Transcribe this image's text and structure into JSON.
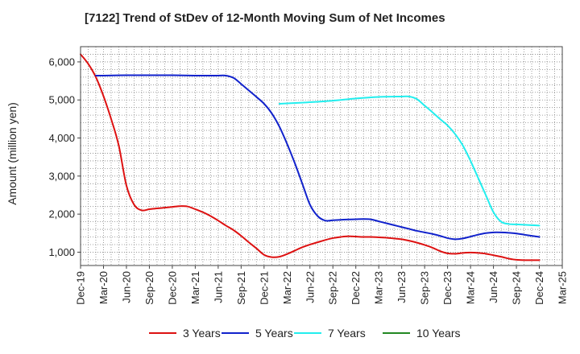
{
  "chart_data": {
    "type": "line",
    "title": "[7122]  Trend of StDev of 12-Month Moving Sum of Net Incomes",
    "ylabel": "Amount (million yen)",
    "xlabel": "",
    "ylim": [
      650,
      6400
    ],
    "y_ticks": [
      1000,
      2000,
      3000,
      4000,
      5000,
      6000
    ],
    "y_tick_labels": [
      "1,000",
      "2,000",
      "3,000",
      "4,000",
      "5,000",
      "6,000"
    ],
    "x_tick_labels": [
      "Dec-19",
      "Mar-20",
      "Jun-20",
      "Sep-20",
      "Dec-20",
      "Mar-21",
      "Jun-21",
      "Sep-21",
      "Dec-21",
      "Mar-22",
      "Jun-22",
      "Sep-22",
      "Dec-22",
      "Mar-23",
      "Jun-23",
      "Sep-23",
      "Dec-23",
      "Mar-24",
      "Jun-24",
      "Sep-24",
      "Dec-24",
      "Mar-25"
    ],
    "grid": true,
    "legend_position": "bottom",
    "series": [
      {
        "name": "3 Years",
        "color": "#dd1111",
        "points": [
          [
            "Dec-19",
            6200
          ],
          [
            "Jan-20",
            5950
          ],
          [
            "Feb-20",
            5600
          ],
          [
            "Mar-20",
            5100
          ],
          [
            "Apr-20",
            4500
          ],
          [
            "May-20",
            3800
          ],
          [
            "Jun-20",
            2750
          ],
          [
            "Jul-20",
            2250
          ],
          [
            "Aug-20",
            2100
          ],
          [
            "Sep-20",
            2130
          ],
          [
            "Oct-20",
            2150
          ],
          [
            "Nov-20",
            2170
          ],
          [
            "Dec-20",
            2190
          ],
          [
            "Jan-21",
            2210
          ],
          [
            "Feb-21",
            2200
          ],
          [
            "Mar-21",
            2130
          ],
          [
            "Apr-21",
            2050
          ],
          [
            "May-21",
            1950
          ],
          [
            "Jun-21",
            1830
          ],
          [
            "Jul-21",
            1700
          ],
          [
            "Aug-21",
            1580
          ],
          [
            "Sep-21",
            1430
          ],
          [
            "Oct-21",
            1260
          ],
          [
            "Nov-21",
            1100
          ],
          [
            "Dec-21",
            930
          ],
          [
            "Jan-22",
            870
          ],
          [
            "Feb-22",
            880
          ],
          [
            "Mar-22",
            950
          ],
          [
            "Apr-22",
            1040
          ],
          [
            "May-22",
            1130
          ],
          [
            "Jun-22",
            1200
          ],
          [
            "Jul-22",
            1260
          ],
          [
            "Aug-22",
            1320
          ],
          [
            "Sep-22",
            1370
          ],
          [
            "Oct-22",
            1400
          ],
          [
            "Nov-22",
            1420
          ],
          [
            "Dec-22",
            1410
          ],
          [
            "Jan-23",
            1400
          ],
          [
            "Feb-23",
            1400
          ],
          [
            "Mar-23",
            1390
          ],
          [
            "Apr-23",
            1380
          ],
          [
            "May-23",
            1360
          ],
          [
            "Jun-23",
            1340
          ],
          [
            "Jul-23",
            1300
          ],
          [
            "Aug-23",
            1250
          ],
          [
            "Sep-23",
            1190
          ],
          [
            "Oct-23",
            1120
          ],
          [
            "Nov-23",
            1030
          ],
          [
            "Dec-23",
            970
          ],
          [
            "Jan-24",
            960
          ],
          [
            "Feb-24",
            980
          ],
          [
            "Mar-24",
            990
          ],
          [
            "Apr-24",
            980
          ],
          [
            "May-24",
            960
          ],
          [
            "Jun-24",
            920
          ],
          [
            "Jul-24",
            880
          ],
          [
            "Aug-24",
            830
          ],
          [
            "Sep-24",
            800
          ],
          [
            "Oct-24",
            790
          ],
          [
            "Nov-24",
            790
          ],
          [
            "Dec-24",
            790
          ]
        ]
      },
      {
        "name": "5 Years",
        "color": "#1122cc",
        "points": [
          [
            "Feb-20",
            5640
          ],
          [
            "Mar-20",
            5640
          ],
          [
            "Jun-20",
            5650
          ],
          [
            "Sep-20",
            5650
          ],
          [
            "Dec-20",
            5650
          ],
          [
            "Mar-21",
            5640
          ],
          [
            "Jun-21",
            5640
          ],
          [
            "Jul-21",
            5640
          ],
          [
            "Aug-21",
            5580
          ],
          [
            "Sep-21",
            5420
          ],
          [
            "Oct-21",
            5250
          ],
          [
            "Nov-21",
            5080
          ],
          [
            "Dec-21",
            4900
          ],
          [
            "Jan-22",
            4650
          ],
          [
            "Feb-22",
            4300
          ],
          [
            "Mar-22",
            3850
          ],
          [
            "Apr-22",
            3350
          ],
          [
            "May-22",
            2800
          ],
          [
            "Jun-22",
            2250
          ],
          [
            "Jul-22",
            1950
          ],
          [
            "Aug-22",
            1830
          ],
          [
            "Sep-22",
            1840
          ],
          [
            "Oct-22",
            1850
          ],
          [
            "Nov-22",
            1860
          ],
          [
            "Dec-22",
            1865
          ],
          [
            "Jan-23",
            1870
          ],
          [
            "Feb-23",
            1860
          ],
          [
            "Mar-23",
            1810
          ],
          [
            "Apr-23",
            1760
          ],
          [
            "May-23",
            1710
          ],
          [
            "Jun-23",
            1660
          ],
          [
            "Jul-23",
            1610
          ],
          [
            "Aug-23",
            1560
          ],
          [
            "Sep-23",
            1520
          ],
          [
            "Oct-23",
            1480
          ],
          [
            "Nov-23",
            1430
          ],
          [
            "Dec-23",
            1370
          ],
          [
            "Jan-24",
            1340
          ],
          [
            "Feb-24",
            1360
          ],
          [
            "Mar-24",
            1410
          ],
          [
            "Apr-24",
            1460
          ],
          [
            "May-24",
            1500
          ],
          [
            "Jun-24",
            1520
          ],
          [
            "Jul-24",
            1520
          ],
          [
            "Aug-24",
            1510
          ],
          [
            "Sep-24",
            1490
          ],
          [
            "Oct-24",
            1460
          ],
          [
            "Nov-24",
            1430
          ],
          [
            "Dec-24",
            1400
          ]
        ]
      },
      {
        "name": "7 Years",
        "color": "#22eeee",
        "points": [
          [
            "Feb-22",
            4900
          ],
          [
            "Mar-22",
            4910
          ],
          [
            "Jun-22",
            4940
          ],
          [
            "Sep-22",
            4980
          ],
          [
            "Dec-22",
            5040
          ],
          [
            "Mar-23",
            5080
          ],
          [
            "Jun-23",
            5090
          ],
          [
            "Jul-23",
            5090
          ],
          [
            "Aug-23",
            5020
          ],
          [
            "Sep-23",
            4850
          ],
          [
            "Oct-23",
            4680
          ],
          [
            "Nov-23",
            4500
          ],
          [
            "Dec-23",
            4330
          ],
          [
            "Jan-24",
            4100
          ],
          [
            "Feb-24",
            3800
          ],
          [
            "Mar-24",
            3400
          ],
          [
            "Apr-24",
            2950
          ],
          [
            "May-24",
            2500
          ],
          [
            "Jun-24",
            2050
          ],
          [
            "Jul-24",
            1800
          ],
          [
            "Aug-24",
            1740
          ],
          [
            "Sep-24",
            1730
          ],
          [
            "Oct-24",
            1720
          ],
          [
            "Nov-24",
            1710
          ],
          [
            "Dec-24",
            1700
          ]
        ]
      },
      {
        "name": "10 Years",
        "color": "#228822",
        "points": []
      }
    ]
  }
}
